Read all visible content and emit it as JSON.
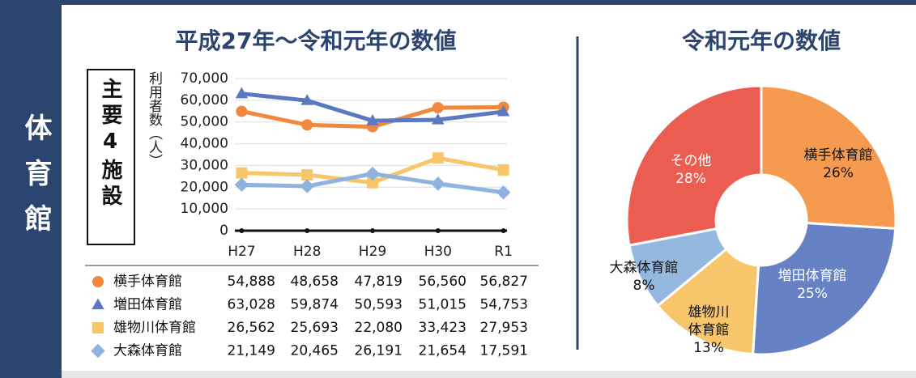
{
  "side_label": "体育館",
  "chart_data": [
    {
      "type": "line",
      "title": "平成27年～令和元年の数値",
      "box_label": "主要4施設",
      "y_label": "利用者数（人）",
      "categories": [
        "H27",
        "H28",
        "H29",
        "H30",
        "R1"
      ],
      "series": [
        {
          "name": "横手体育館",
          "color": "#f0883e",
          "marker": "circle",
          "values": [
            54888,
            48658,
            47819,
            56560,
            56827
          ],
          "value_labels": [
            "54,888",
            "48,658",
            "47,819",
            "56,560",
            "56,827"
          ]
        },
        {
          "name": "増田体育館",
          "color": "#5b78c0",
          "marker": "triangle",
          "values": [
            63028,
            59874,
            50593,
            51015,
            54753
          ],
          "value_labels": [
            "63,028",
            "59,874",
            "50,593",
            "51,015",
            "54,753"
          ]
        },
        {
          "name": "雄物川体育館",
          "color": "#f7c56a",
          "marker": "square",
          "values": [
            26562,
            25693,
            22080,
            33423,
            27953
          ],
          "value_labels": [
            "26,562",
            "25,693",
            "22,080",
            "33,423",
            "27,953"
          ]
        },
        {
          "name": "大森体育館",
          "color": "#8fb3de",
          "marker": "diamond",
          "values": [
            21149,
            20465,
            26191,
            21654,
            17591
          ],
          "value_labels": [
            "21,149",
            "20,465",
            "26,191",
            "21,654",
            "17,591"
          ]
        }
      ],
      "ylim": [
        0,
        70000
      ],
      "yticks": [
        0,
        {
          "value": 10000,
          "label": "10,000"
        },
        {
          "value": 20000,
          "label": "20,000"
        },
        {
          "value": 30000,
          "label": "30,000"
        },
        {
          "value": 40000,
          "label": "40,000"
        },
        {
          "value": 50000,
          "label": "50,000"
        },
        {
          "value": 60000,
          "label": "60,000"
        },
        {
          "value": 70000,
          "label": "70,000"
        }
      ],
      "grid": true
    },
    {
      "type": "pie",
      "title": "令和元年の数値",
      "categories": [
        "横手体育館",
        "増田体育館",
        "雄物川体育館",
        "大森体育館",
        "その他"
      ],
      "values": [
        26,
        25,
        13,
        8,
        28
      ],
      "value_labels": [
        "26%",
        "25%",
        "13%",
        "8%",
        "28%"
      ],
      "colors": [
        "#f59a4f",
        "#6682c4",
        "#f7c56a",
        "#95b8df",
        "#ea5d50"
      ],
      "hole": true
    }
  ]
}
